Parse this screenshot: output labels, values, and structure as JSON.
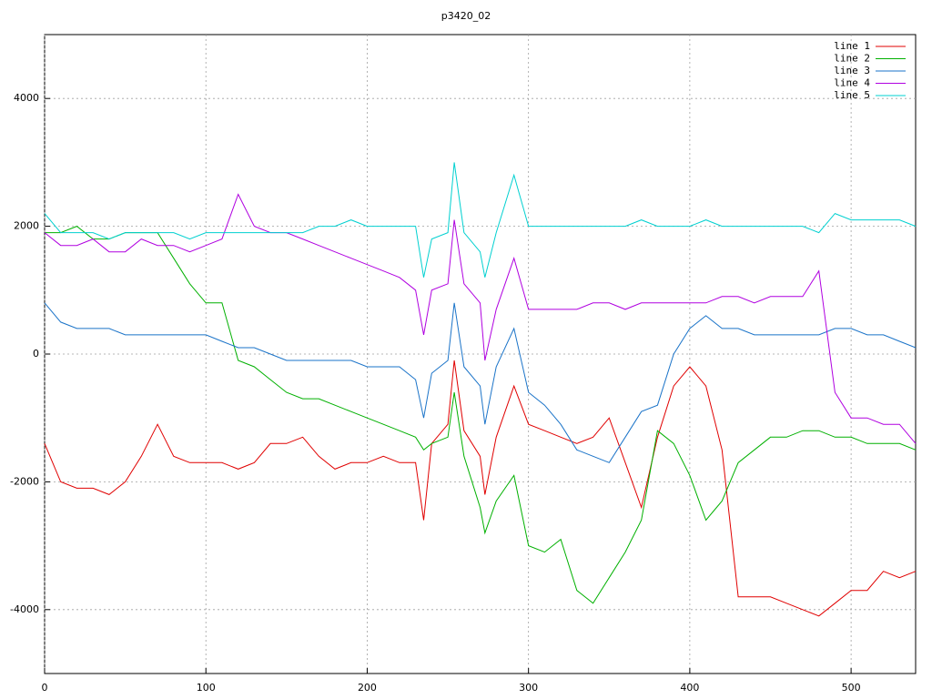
{
  "chart_data": {
    "type": "line",
    "title": "p3420_02",
    "x": [
      0,
      10,
      20,
      30,
      40,
      50,
      60,
      70,
      80,
      90,
      100,
      110,
      120,
      130,
      140,
      150,
      160,
      170,
      180,
      190,
      200,
      210,
      220,
      230,
      235,
      240,
      250,
      254,
      260,
      270,
      273,
      280,
      291,
      300,
      310,
      320,
      330,
      340,
      350,
      360,
      370,
      380,
      390,
      400,
      410,
      420,
      430,
      440,
      450,
      460,
      470,
      480,
      490,
      500,
      510,
      520,
      530,
      540
    ],
    "series": [
      {
        "name": "line 1",
        "color": "#e00000",
        "values": [
          -1400,
          -2000,
          -2100,
          -2100,
          -2200,
          -2000,
          -1600,
          -1100,
          -1600,
          -1700,
          -1700,
          -1700,
          -1800,
          -1700,
          -1400,
          -1400,
          -1300,
          -1600,
          -1800,
          -1700,
          -1700,
          -1600,
          -1700,
          -1700,
          -2600,
          -1400,
          -1100,
          -100,
          -1200,
          -1600,
          -2200,
          -1300,
          -500,
          -1100,
          -1200,
          -1300,
          -1400,
          -1300,
          -1000,
          -1700,
          -2400,
          -1300,
          -500,
          -200,
          -500,
          -1500,
          -3800,
          -3800,
          -3800,
          -3900,
          -4000,
          -4100,
          -3900,
          -3700,
          -3700,
          -3400,
          -3500,
          -3400
        ]
      },
      {
        "name": "line 2",
        "color": "#00b000",
        "values": [
          1900,
          1900,
          2000,
          1800,
          1800,
          1900,
          1900,
          1900,
          1500,
          1100,
          800,
          800,
          -100,
          -200,
          -400,
          -600,
          -700,
          -700,
          -800,
          -900,
          -1000,
          -1100,
          -1200,
          -1300,
          -1500,
          -1400,
          -1300,
          -600,
          -1600,
          -2400,
          -2800,
          -2300,
          -1900,
          -3000,
          -3100,
          -2900,
          -3700,
          -3900,
          -3500,
          -3100,
          -2600,
          -1200,
          -1400,
          -1900,
          -2600,
          -2300,
          -1700,
          -1500,
          -1300,
          -1300,
          -1200,
          -1200,
          -1300,
          -1300,
          -1400,
          -1400,
          -1400,
          -1500
        ]
      },
      {
        "name": "line 3",
        "color": "#1a73c8",
        "values": [
          800,
          500,
          400,
          400,
          400,
          300,
          300,
          300,
          300,
          300,
          300,
          200,
          100,
          100,
          0,
          -100,
          -100,
          -100,
          -100,
          -100,
          -200,
          -200,
          -200,
          -400,
          -1000,
          -300,
          -100,
          800,
          -200,
          -500,
          -1100,
          -200,
          400,
          -600,
          -800,
          -1100,
          -1500,
          -1600,
          -1700,
          -1300,
          -900,
          -800,
          0,
          400,
          600,
          400,
          400,
          300,
          300,
          300,
          300,
          300,
          400,
          400,
          300,
          300,
          200,
          100
        ]
      },
      {
        "name": "line 4",
        "color": "#b000e0",
        "values": [
          1900,
          1700,
          1700,
          1800,
          1600,
          1600,
          1800,
          1700,
          1700,
          1600,
          1700,
          1800,
          2500,
          2000,
          1900,
          1900,
          1800,
          1700,
          1600,
          1500,
          1400,
          1300,
          1200,
          1000,
          300,
          1000,
          1100,
          2100,
          1100,
          800,
          -100,
          700,
          1500,
          700,
          700,
          700,
          700,
          800,
          800,
          700,
          800,
          800,
          800,
          800,
          800,
          900,
          900,
          800,
          900,
          900,
          900,
          1300,
          -600,
          -1000,
          -1000,
          -1100,
          -1100,
          -1400
        ]
      },
      {
        "name": "line 5",
        "color": "#00d0d0",
        "values": [
          2200,
          1900,
          1900,
          1900,
          1800,
          1900,
          1900,
          1900,
          1900,
          1800,
          1900,
          1900,
          1900,
          1900,
          1900,
          1900,
          1900,
          2000,
          2000,
          2100,
          2000,
          2000,
          2000,
          2000,
          1200,
          1800,
          1900,
          3000,
          1900,
          1600,
          1200,
          1900,
          2800,
          2000,
          2000,
          2000,
          2000,
          2000,
          2000,
          2000,
          2100,
          2000,
          2000,
          2000,
          2100,
          2000,
          2000,
          2000,
          2000,
          2000,
          2000,
          1900,
          2200,
          2100,
          2100,
          2100,
          2100,
          2000
        ]
      }
    ],
    "xlim": [
      0,
      540
    ],
    "xticks": [
      0,
      100,
      200,
      300,
      400,
      500
    ],
    "ylim": [
      -5000,
      5000
    ],
    "yticks": [
      -4000,
      -2000,
      0,
      2000,
      4000
    ],
    "grid": true,
    "legend": "top-right"
  }
}
